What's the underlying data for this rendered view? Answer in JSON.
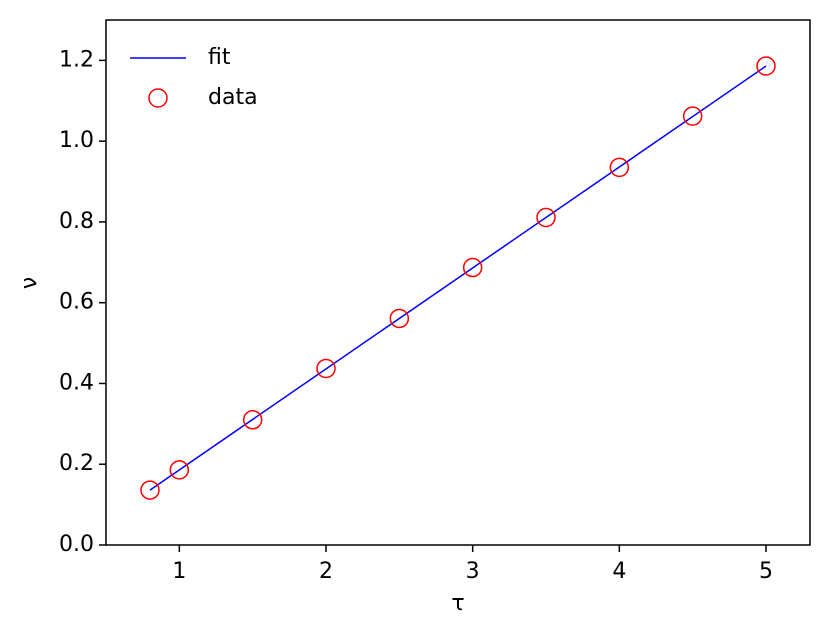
{
  "chart_data": {
    "type": "line",
    "xlabel": "τ",
    "ylabel": "ν",
    "xlim": [
      0.5,
      5.3
    ],
    "ylim": [
      0,
      1.3
    ],
    "xticks": [
      1,
      2,
      3,
      4,
      5
    ],
    "yticks": [
      {
        "value": 0,
        "label": "0.0"
      },
      0.2,
      0.4,
      0.6,
      0.8,
      {
        "value": 1,
        "label": "1.0"
      },
      1.2
    ],
    "legend": "upper left",
    "series": [
      {
        "name": "fit",
        "color": "#0000ff",
        "style": "line",
        "x": [
          0.8,
          5
        ],
        "values": [
          0.136,
          1.186
        ]
      },
      {
        "name": "data",
        "color": "#ff0000",
        "style": "marker",
        "x": [
          0.8,
          1,
          1.5,
          2,
          2.5,
          3,
          3.5,
          4,
          4.5,
          5
        ],
        "values": [
          0.136,
          0.186,
          0.31,
          0.437,
          0.561,
          0.687,
          0.811,
          0.935,
          1.062,
          1.186
        ]
      }
    ]
  }
}
